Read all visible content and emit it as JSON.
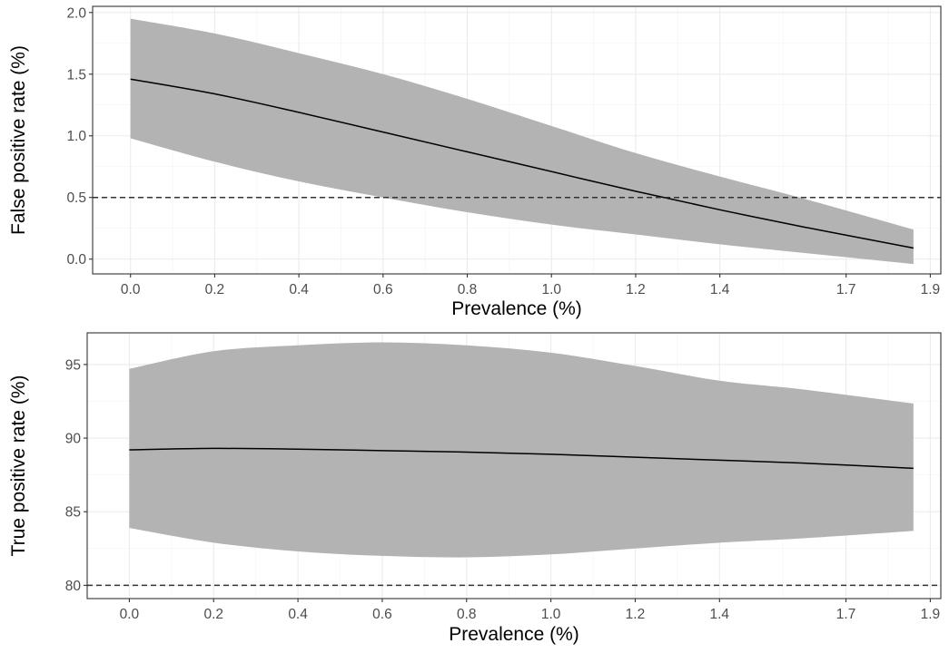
{
  "chart_data": [
    {
      "type": "line",
      "xlabel": "Prevalence (%)",
      "ylabel": "False positive rate (%)",
      "xlim": [
        -0.09,
        1.925
      ],
      "ylim": [
        -0.12,
        2.05
      ],
      "x_ticks": [
        0.0,
        0.2,
        0.4,
        0.6,
        0.8,
        1.0,
        1.2,
        1.4,
        1.7,
        1.9
      ],
      "x_tick_labels": [
        "0.0",
        "0.2",
        "0.4",
        "0.6",
        "0.8",
        "1.0",
        "1.2",
        "1.4",
        "1.7",
        "1.9"
      ],
      "y_ticks": [
        0.0,
        0.5,
        1.0,
        1.5,
        2.0
      ],
      "y_tick_labels": [
        "0.0",
        "0.5",
        "1.0",
        "1.5",
        "2.0"
      ],
      "reference_line": 0.5,
      "grid": true,
      "series": [
        {
          "x": [
            0.0,
            0.2,
            0.4,
            0.6,
            0.8,
            1.0,
            1.2,
            1.4,
            1.6,
            1.86
          ],
          "y": [
            1.46,
            1.34,
            1.19,
            1.03,
            0.87,
            0.71,
            0.55,
            0.4,
            0.26,
            0.09
          ],
          "lower": [
            0.98,
            0.79,
            0.63,
            0.5,
            0.38,
            0.28,
            0.2,
            0.12,
            0.05,
            -0.04
          ],
          "upper": [
            1.95,
            1.83,
            1.67,
            1.5,
            1.3,
            1.08,
            0.86,
            0.67,
            0.49,
            0.24
          ]
        }
      ],
      "colors": {
        "ribbon": "#b3b3b3",
        "line": "#000000",
        "reference": "#333333"
      }
    },
    {
      "type": "line",
      "xlabel": "Prevalence (%)",
      "ylabel": "True positive rate (%)",
      "xlim": [
        -0.1,
        1.925
      ],
      "ylim": [
        79.1,
        97.15
      ],
      "x_ticks": [
        0.0,
        0.2,
        0.4,
        0.6,
        0.8,
        1.0,
        1.2,
        1.4,
        1.7,
        1.9
      ],
      "x_tick_labels": [
        "0.0",
        "0.2",
        "0.4",
        "0.6",
        "0.8",
        "1.0",
        "1.2",
        "1.4",
        "1.7",
        "1.9"
      ],
      "y_ticks": [
        80,
        85,
        90,
        95
      ],
      "y_tick_labels": [
        "80",
        "85",
        "90",
        "95"
      ],
      "reference_line": 80,
      "grid": true,
      "series": [
        {
          "x": [
            0.0,
            0.2,
            0.4,
            0.6,
            0.8,
            1.0,
            1.2,
            1.4,
            1.6,
            1.86
          ],
          "y": [
            89.2,
            89.3,
            89.25,
            89.15,
            89.05,
            88.9,
            88.7,
            88.5,
            88.3,
            87.95
          ],
          "lower": [
            83.9,
            82.9,
            82.3,
            82.0,
            81.9,
            82.1,
            82.5,
            82.9,
            83.2,
            83.7
          ],
          "upper": [
            94.7,
            95.9,
            96.3,
            96.5,
            96.3,
            95.8,
            94.9,
            93.9,
            93.3,
            92.35
          ]
        }
      ],
      "colors": {
        "ribbon": "#b3b3b3",
        "line": "#000000",
        "reference": "#333333"
      }
    }
  ]
}
